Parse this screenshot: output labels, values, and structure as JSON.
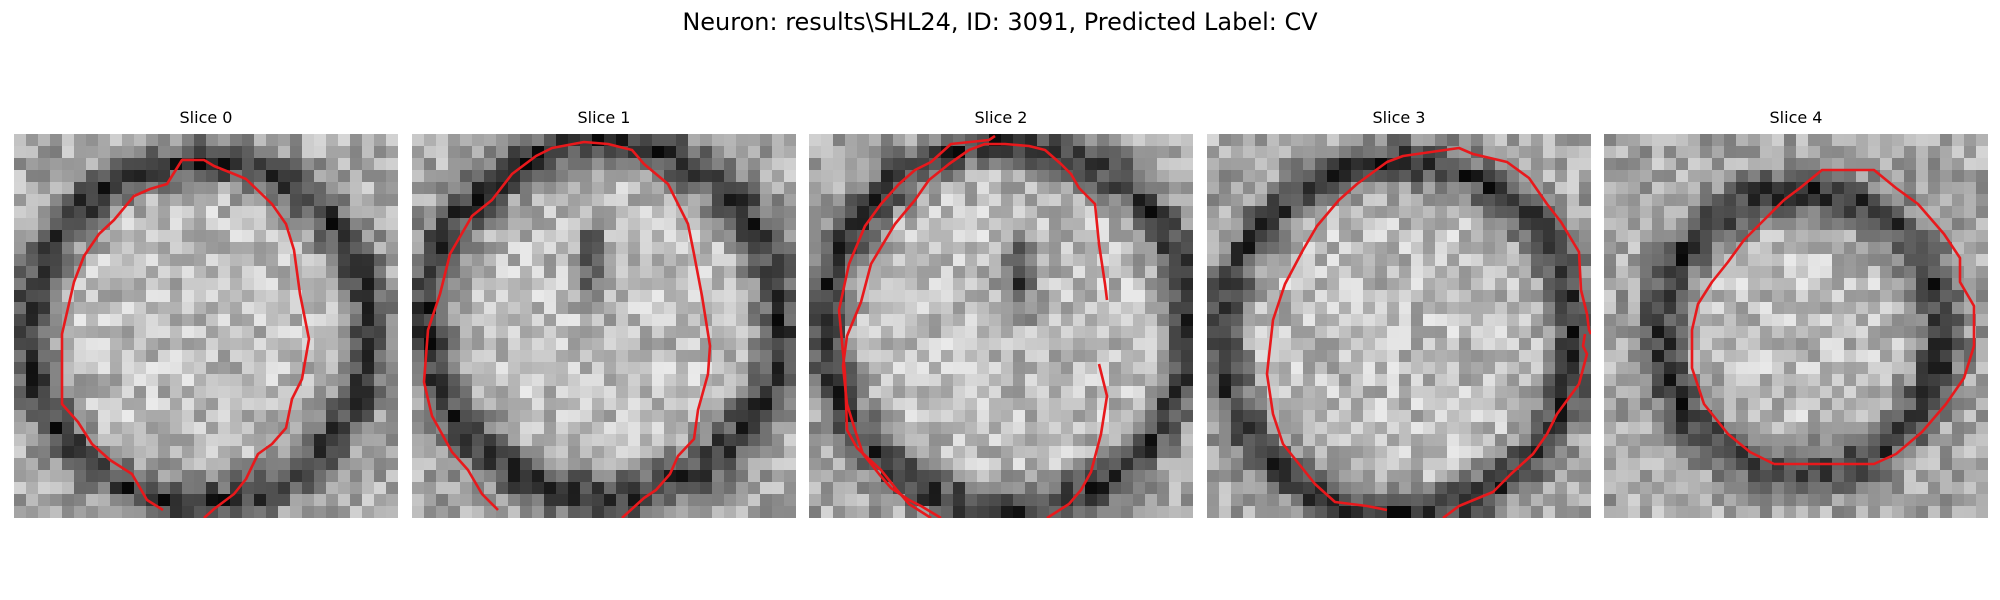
{
  "figure": {
    "title": "Neuron: results\\SHL24, ID: 3091, Predicted Label: CV"
  },
  "colors": {
    "contour": "#e8191c",
    "background": "#ffffff"
  },
  "panels": [
    {
      "title": "Slice 0"
    },
    {
      "title": "Slice 1"
    },
    {
      "title": "Slice 2"
    },
    {
      "title": "Slice 3"
    },
    {
      "title": "Slice 4"
    }
  ]
}
